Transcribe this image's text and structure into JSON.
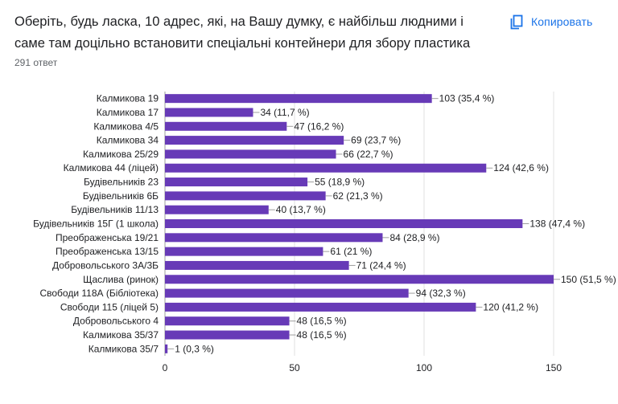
{
  "question": {
    "text": "Оберіть, будь ласка, 10 адрес, які, на Вашу думку, є найбільш людними і саме там доцільно встановити спеціальні контейнери для збору пластика",
    "response_count": "291 ответ"
  },
  "toolbar": {
    "copy_label": "Копировать",
    "copy_icon": "copy-icon"
  },
  "colors": {
    "bar": "#673ab7",
    "grid": "#e0e0e0",
    "text": "#202124",
    "accent": "#1a73e8"
  },
  "chart_data": {
    "type": "bar",
    "orientation": "horizontal",
    "categories": [
      "Калмикова 19",
      "Калмикова 17",
      "Калмикова 4/5",
      "Калмикова 34",
      "Калмикова 25/29",
      "Калмикова 44 (ліцей)",
      "Будівельників 23",
      "Будівельників 6Б",
      "Будівельників 11/13",
      "Будівельників 15Г (1 школа)",
      "Преображенська 19/21",
      "Преображенська 13/15",
      "Добровольського 3А/3Б",
      "Щаслива (ринок)",
      "Свободи 118А (Бібліотека)",
      "Свободи 115 (ліцей 5)",
      "Добровольського 4",
      "Калмикова 35/37",
      "Калмикова 35/7"
    ],
    "values": [
      103,
      34,
      47,
      69,
      66,
      124,
      55,
      62,
      40,
      138,
      84,
      61,
      71,
      150,
      94,
      120,
      48,
      48,
      1
    ],
    "labels": [
      "103 (35,4 %)",
      "34 (11,7 %)",
      "47 (16,2 %)",
      "69 (23,7 %)",
      "66 (22,7 %)",
      "124 (42,6 %)",
      "55 (18,9 %)",
      "62 (21,3 %)",
      "40 (13,7 %)",
      "138 (47,4 %)",
      "84 (28,9 %)",
      "61 (21 %)",
      "71 (24,4 %)",
      "150 (51,5 %)",
      "94 (32,3 %)",
      "120 (41,2 %)",
      "48 (16,5 %)",
      "48 (16,5 %)",
      "1 (0,3 %)"
    ],
    "xticks": [
      0,
      50,
      100,
      150
    ],
    "xlim": [
      0,
      150
    ],
    "grid": true,
    "legend": "none"
  }
}
